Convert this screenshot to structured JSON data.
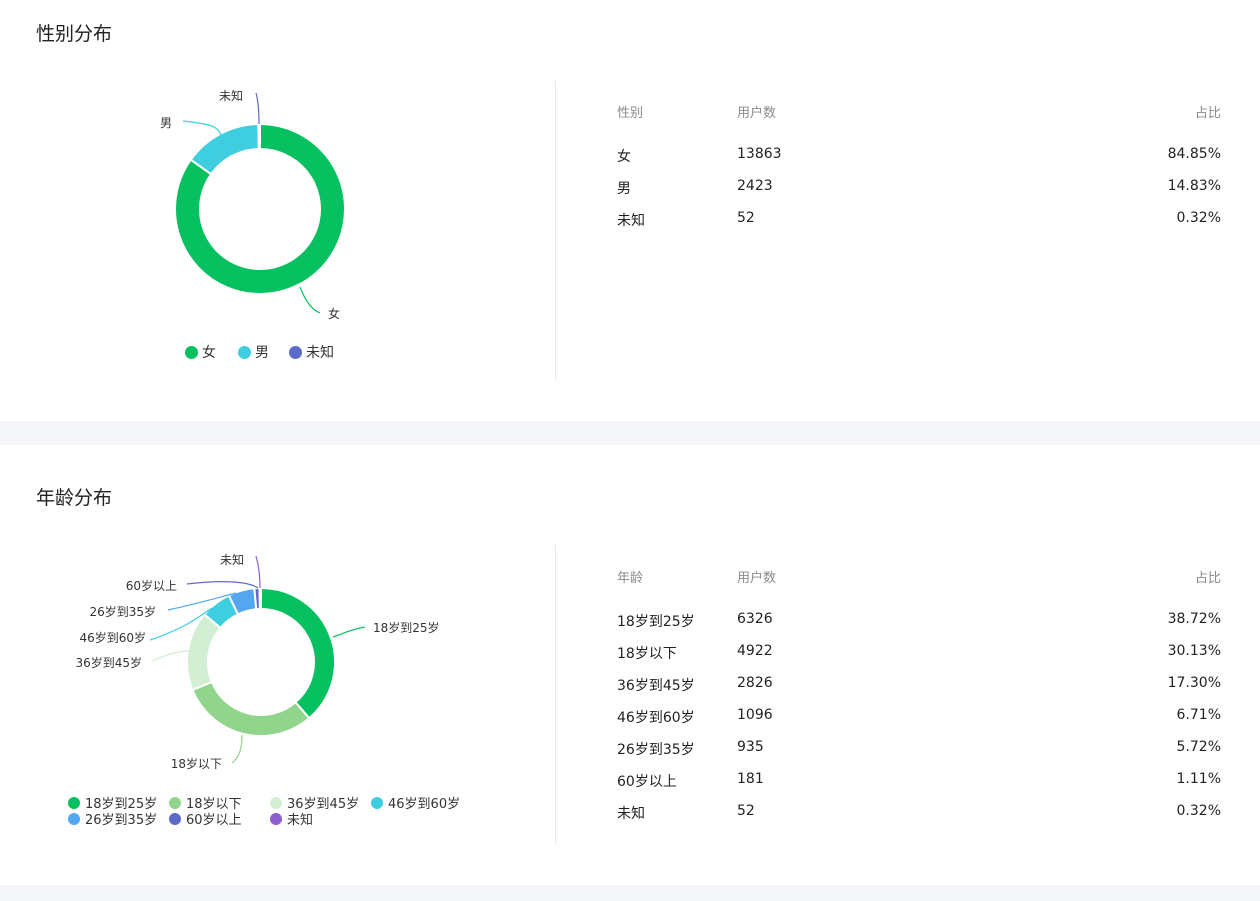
{
  "colors": {
    "female": "#07c160",
    "male": "#3fcee0",
    "unknown_gender": "#5c6bc9",
    "age_18_25": "#07c160",
    "age_under18": "#91d58c",
    "age_36_45": "#d2efd4",
    "age_46_60": "#3fcee0",
    "age_26_35": "#54a6f0",
    "age_60plus": "#5c6bc9",
    "age_unknown": "#8e5ed0"
  },
  "gender": {
    "title": "性别分布",
    "table_headers": {
      "category": "性别",
      "users": "用户数",
      "ratio": "占比"
    },
    "rows": [
      {
        "label": "女",
        "users": "13863",
        "ratio": "84.85%"
      },
      {
        "label": "男",
        "users": "2423",
        "ratio": "14.83%"
      },
      {
        "label": "未知",
        "users": "52",
        "ratio": "0.32%"
      }
    ],
    "legend": [
      "女",
      "男",
      "未知"
    ]
  },
  "age": {
    "title": "年龄分布",
    "table_headers": {
      "category": "年龄",
      "users": "用户数",
      "ratio": "占比"
    },
    "rows": [
      {
        "label": "18岁到25岁",
        "users": "6326",
        "ratio": "38.72%"
      },
      {
        "label": "18岁以下",
        "users": "4922",
        "ratio": "30.13%"
      },
      {
        "label": "36岁到45岁",
        "users": "2826",
        "ratio": "17.30%"
      },
      {
        "label": "46岁到60岁",
        "users": "1096",
        "ratio": "6.71%"
      },
      {
        "label": "26岁到35岁",
        "users": "935",
        "ratio": "5.72%"
      },
      {
        "label": "60岁以上",
        "users": "181",
        "ratio": "1.11%"
      },
      {
        "label": "未知",
        "users": "52",
        "ratio": "0.32%"
      }
    ],
    "legend": [
      "18岁到25岁",
      "18岁以下",
      "36岁到45岁",
      "46岁到60岁",
      "26岁到35岁",
      "60岁以上",
      "未知"
    ]
  },
  "chart_data": [
    {
      "type": "pie",
      "title": "性别分布",
      "categories": [
        "女",
        "男",
        "未知"
      ],
      "values": [
        13863,
        2423,
        52
      ],
      "legend_placement": "bottom"
    },
    {
      "type": "pie",
      "title": "年龄分布",
      "categories": [
        "18岁到25岁",
        "18岁以下",
        "36岁到45岁",
        "46岁到60岁",
        "26岁到35岁",
        "60岁以上",
        "未知"
      ],
      "values": [
        6326,
        4922,
        2826,
        1096,
        935,
        181,
        52
      ],
      "legend_placement": "bottom"
    }
  ]
}
